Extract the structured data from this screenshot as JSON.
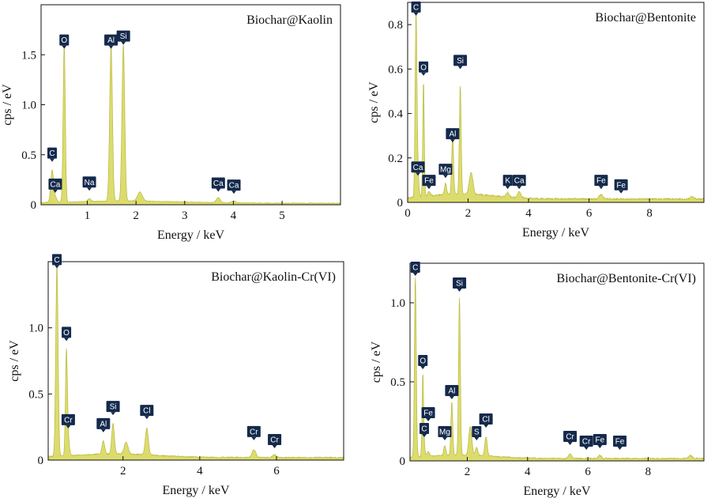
{
  "chart_data": [
    {
      "type": "area",
      "title": "Biochar@Kaolin",
      "xlabel": "Energy / keV",
      "ylabel": "cps / eV",
      "xlim": [
        0.05,
        6.2
      ],
      "ylim": [
        0,
        2.0
      ],
      "x_ticks": [
        1,
        2,
        3,
        4,
        5
      ],
      "y_ticks": [
        0,
        0.5,
        1.0,
        1.5
      ],
      "y_tick_labels": [
        "0",
        "0.5",
        "1.0",
        "1.5"
      ],
      "fill_color": "#dcdc6e",
      "line_color": "#b8b840",
      "spectrum_peaks": [
        {
          "x": 0.277,
          "y": 0.32,
          "w": 0.028
        },
        {
          "x": 0.341,
          "y": 0.05,
          "w": 0.03
        },
        {
          "x": 0.525,
          "y": 1.58,
          "w": 0.022
        },
        {
          "x": 1.041,
          "y": 0.03,
          "w": 0.03
        },
        {
          "x": 1.487,
          "y": 1.56,
          "w": 0.028
        },
        {
          "x": 1.74,
          "y": 1.57,
          "w": 0.028
        },
        {
          "x": 2.08,
          "y": 0.09,
          "w": 0.05
        },
        {
          "x": 3.69,
          "y": 0.05,
          "w": 0.04
        },
        {
          "x": 4.01,
          "y": 0.02,
          "w": 0.04
        }
      ],
      "baseline": 0.012,
      "peak_labels": [
        {
          "label": "C",
          "x": 0.277,
          "y": 0.43
        },
        {
          "label": "Ca",
          "x": 0.341,
          "y": 0.12
        },
        {
          "label": "O",
          "x": 0.525,
          "y": 1.56
        },
        {
          "label": "Na",
          "x": 1.041,
          "y": 0.14
        },
        {
          "label": "Al",
          "x": 1.487,
          "y": 1.56
        },
        {
          "label": "Si",
          "x": 1.74,
          "y": 1.6
        },
        {
          "label": "Ca",
          "x": 3.69,
          "y": 0.13
        },
        {
          "label": "Ca",
          "x": 4.01,
          "y": 0.11
        }
      ]
    },
    {
      "type": "area",
      "title": "Biochar@Bentonite",
      "xlabel": "Energy / keV",
      "ylabel": "cps / eV",
      "xlim": [
        0,
        9.8
      ],
      "ylim": [
        0,
        0.9
      ],
      "x_ticks": [
        0,
        2,
        4,
        6,
        8
      ],
      "y_ticks": [
        0,
        0.2,
        0.4,
        0.6,
        0.8
      ],
      "y_tick_labels": [
        "0",
        "0.2",
        "0.4",
        "0.6",
        "0.8"
      ],
      "fill_color": "#dcdc6e",
      "line_color": "#b8b840",
      "spectrum_peaks": [
        {
          "x": 0.277,
          "y": 0.83,
          "w": 0.03
        },
        {
          "x": 0.341,
          "y": 0.1,
          "w": 0.03
        },
        {
          "x": 0.525,
          "y": 0.52,
          "w": 0.025
        },
        {
          "x": 0.705,
          "y": 0.02,
          "w": 0.04
        },
        {
          "x": 1.253,
          "y": 0.05,
          "w": 0.035
        },
        {
          "x": 1.487,
          "y": 0.27,
          "w": 0.03
        },
        {
          "x": 1.74,
          "y": 0.49,
          "w": 0.03
        },
        {
          "x": 2.1,
          "y": 0.1,
          "w": 0.06
        },
        {
          "x": 3.31,
          "y": 0.02,
          "w": 0.05
        },
        {
          "x": 3.69,
          "y": 0.03,
          "w": 0.05
        },
        {
          "x": 6.4,
          "y": 0.02,
          "w": 0.06
        },
        {
          "x": 9.4,
          "y": 0.01,
          "w": 0.06
        }
      ],
      "baseline": 0.012,
      "peak_labels": [
        {
          "label": "C",
          "x": 0.277,
          "y": 0.84
        },
        {
          "label": "Ca",
          "x": 0.341,
          "y": 0.12
        },
        {
          "label": "O",
          "x": 0.525,
          "y": 0.57
        },
        {
          "label": "Fe",
          "x": 0.705,
          "y": 0.06
        },
        {
          "label": "Mg",
          "x": 1.253,
          "y": 0.11
        },
        {
          "label": "Al",
          "x": 1.487,
          "y": 0.27
        },
        {
          "label": "Si",
          "x": 1.74,
          "y": 0.6
        },
        {
          "label": "K",
          "x": 3.31,
          "y": 0.06
        },
        {
          "label": "Ca",
          "x": 3.69,
          "y": 0.06
        },
        {
          "label": "Fe",
          "x": 6.4,
          "y": 0.06
        },
        {
          "label": "Fe",
          "x": 7.06,
          "y": 0.04
        }
      ]
    },
    {
      "type": "area",
      "title": "Biochar@Kaolin-Cr(VI)",
      "xlabel": "Energy / keV",
      "ylabel": "cps / eV",
      "xlim": [
        0.05,
        7.75
      ],
      "ylim": [
        0,
        1.5
      ],
      "x_ticks": [
        2,
        4,
        6
      ],
      "y_ticks": [
        0,
        0.5,
        1.0
      ],
      "y_tick_labels": [
        "0",
        "0.5",
        "1.0"
      ],
      "fill_color": "#dcdc6e",
      "line_color": "#b8b840",
      "spectrum_peaks": [
        {
          "x": 0.277,
          "y": 1.45,
          "w": 0.03
        },
        {
          "x": 0.525,
          "y": 0.78,
          "w": 0.025
        },
        {
          "x": 0.573,
          "y": 0.12,
          "w": 0.03
        },
        {
          "x": 1.487,
          "y": 0.1,
          "w": 0.035
        },
        {
          "x": 1.74,
          "y": 0.23,
          "w": 0.035
        },
        {
          "x": 2.08,
          "y": 0.09,
          "w": 0.05
        },
        {
          "x": 2.62,
          "y": 0.2,
          "w": 0.04
        },
        {
          "x": 5.41,
          "y": 0.06,
          "w": 0.05
        },
        {
          "x": 5.95,
          "y": 0.02,
          "w": 0.05
        }
      ],
      "baseline": 0.015,
      "peak_labels": [
        {
          "label": "C",
          "x": 0.277,
          "y": 1.45
        },
        {
          "label": "O",
          "x": 0.525,
          "y": 0.9
        },
        {
          "label": "Cr",
          "x": 0.573,
          "y": 0.24
        },
        {
          "label": "Al",
          "x": 1.487,
          "y": 0.21
        },
        {
          "label": "Si",
          "x": 1.74,
          "y": 0.34
        },
        {
          "label": "Cl",
          "x": 2.62,
          "y": 0.31
        },
        {
          "label": "Cr",
          "x": 5.41,
          "y": 0.15
        },
        {
          "label": "Cr",
          "x": 5.95,
          "y": 0.09
        }
      ]
    },
    {
      "type": "area",
      "title": "Biochar@Bentonite-Cr(VI)",
      "xlabel": "Energy / keV",
      "ylabel": "cps / eV",
      "xlim": [
        0.1,
        9.85
      ],
      "ylim": [
        0,
        1.25
      ],
      "x_ticks": [
        2,
        4,
        6,
        8
      ],
      "y_ticks": [
        0,
        0.5,
        1.0
      ],
      "y_tick_labels": [
        "0",
        "0.5",
        "1.0"
      ],
      "fill_color": "#dcdc6e",
      "line_color": "#b8b840",
      "spectrum_peaks": [
        {
          "x": 0.277,
          "y": 1.15,
          "w": 0.03
        },
        {
          "x": 0.525,
          "y": 0.52,
          "w": 0.025
        },
        {
          "x": 0.573,
          "y": 0.05,
          "w": 0.03
        },
        {
          "x": 0.705,
          "y": 0.03,
          "w": 0.04
        },
        {
          "x": 1.253,
          "y": 0.06,
          "w": 0.035
        },
        {
          "x": 1.487,
          "y": 0.34,
          "w": 0.03
        },
        {
          "x": 1.74,
          "y": 1.0,
          "w": 0.03
        },
        {
          "x": 2.1,
          "y": 0.18,
          "w": 0.05
        },
        {
          "x": 2.31,
          "y": 0.05,
          "w": 0.04
        },
        {
          "x": 2.62,
          "y": 0.12,
          "w": 0.04
        },
        {
          "x": 5.41,
          "y": 0.03,
          "w": 0.05
        },
        {
          "x": 6.4,
          "y": 0.02,
          "w": 0.05
        },
        {
          "x": 9.4,
          "y": 0.02,
          "w": 0.06
        }
      ],
      "baseline": 0.012,
      "peak_labels": [
        {
          "label": "C",
          "x": 0.277,
          "y": 1.17
        },
        {
          "label": "O",
          "x": 0.525,
          "y": 0.58
        },
        {
          "label": "Fe",
          "x": 0.705,
          "y": 0.25
        },
        {
          "label": "C",
          "x": 0.573,
          "y": 0.15
        },
        {
          "label": "Mg",
          "x": 1.253,
          "y": 0.13
        },
        {
          "label": "Al",
          "x": 1.487,
          "y": 0.39
        },
        {
          "label": "Si",
          "x": 1.74,
          "y": 1.07
        },
        {
          "label": "S",
          "x": 2.31,
          "y": 0.13
        },
        {
          "label": "Cl",
          "x": 2.62,
          "y": 0.21
        },
        {
          "label": "Cr",
          "x": 5.41,
          "y": 0.1
        },
        {
          "label": "Cr",
          "x": 5.95,
          "y": 0.07
        },
        {
          "label": "Fe",
          "x": 6.4,
          "y": 0.08
        },
        {
          "label": "Fe",
          "x": 7.06,
          "y": 0.07
        }
      ]
    }
  ]
}
